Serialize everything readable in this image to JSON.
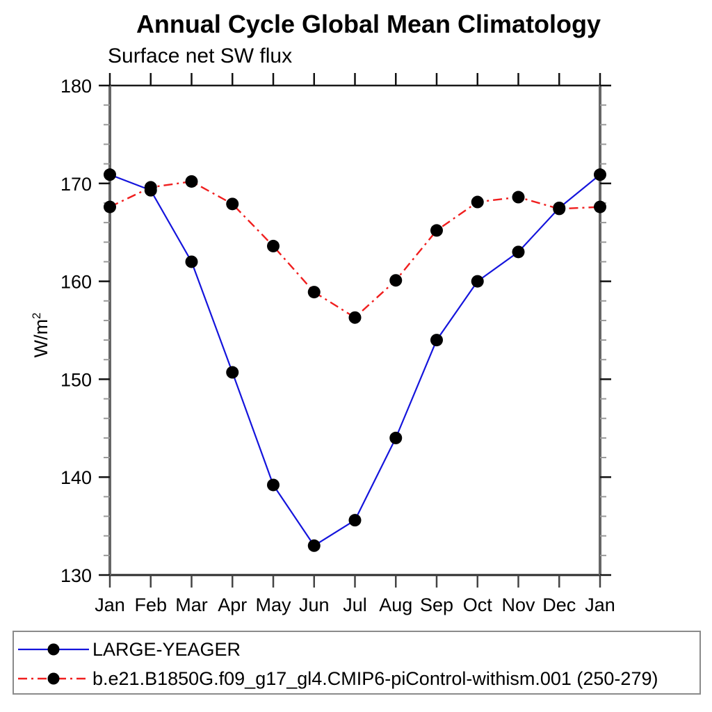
{
  "chart_data": {
    "type": "line",
    "title": "Annual Cycle Global Mean Climatology",
    "subtitle": "Surface net SW flux",
    "ylabel": "W/m^2",
    "ylabel_base": "W/m",
    "ylabel_sup": "2",
    "categories": [
      "Jan",
      "Feb",
      "Mar",
      "Apr",
      "May",
      "Jun",
      "Jul",
      "Aug",
      "Sep",
      "Oct",
      "Nov",
      "Dec",
      "Jan"
    ],
    "ylim": [
      130,
      180
    ],
    "yticks": [
      130,
      140,
      150,
      160,
      170,
      180
    ],
    "y_minor_step": 2,
    "grid": false,
    "legend_position": "bottom-left-box",
    "series": [
      {
        "name": "LARGE-YEAGER",
        "color": "#1414dc",
        "line_style": "solid",
        "line_width": 2.2,
        "marker": "circle",
        "marker_color": "#000000",
        "values": [
          170.9,
          169.3,
          162.0,
          150.7,
          139.2,
          133.0,
          135.6,
          144.0,
          154.0,
          160.0,
          163.0,
          167.5,
          170.9
        ]
      },
      {
        "name": "b.e21.B1850G.f09_g17_gl4.CMIP6-piControl-withism.001 (250-279)",
        "color": "#f01e1e",
        "line_style": "dash-dot",
        "line_width": 2.4,
        "marker": "circle",
        "marker_color": "#000000",
        "values": [
          167.6,
          169.6,
          170.2,
          167.9,
          163.6,
          158.9,
          156.3,
          160.1,
          165.2,
          168.1,
          168.6,
          167.4,
          167.6
        ]
      }
    ]
  }
}
